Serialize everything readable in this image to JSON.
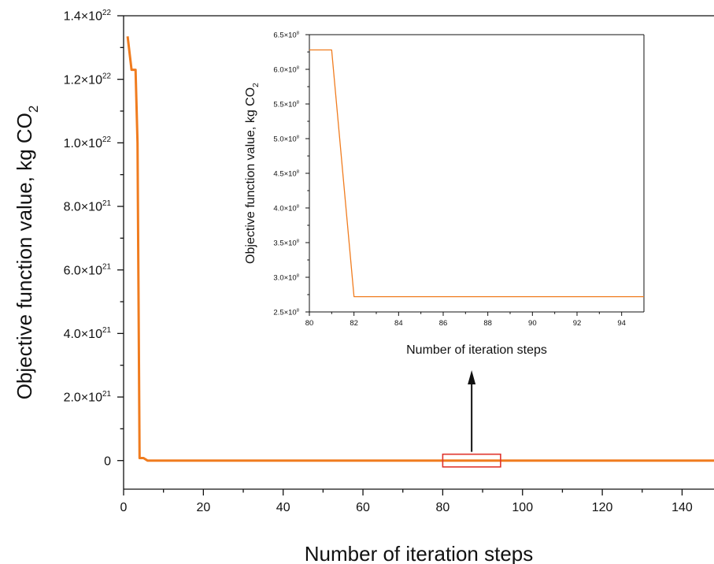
{
  "chart_data": [
    {
      "type": "line",
      "ylabel": "Objective function value, kg CO",
      "ylabel_subscript": "2",
      "xlabel": "Number of iteration steps",
      "xlim": [
        0,
        148
      ],
      "ylim": [
        -9e+20,
        1.4e+22
      ],
      "x_ticks": [
        0,
        20,
        40,
        60,
        80,
        100,
        120,
        140
      ],
      "y_ticks": [
        {
          "value": 1.4e+22,
          "mantissa": "1.4×10",
          "exp": "22"
        },
        {
          "value": 1.2e+22,
          "mantissa": "1.2×10",
          "exp": "22"
        },
        {
          "value": 1e+22,
          "mantissa": "1.0×10",
          "exp": "22"
        },
        {
          "value": 8e+21,
          "mantissa": "8.0×10",
          "exp": "21"
        },
        {
          "value": 6e+21,
          "mantissa": "6.0×10",
          "exp": "21"
        },
        {
          "value": 4e+21,
          "mantissa": "4.0×10",
          "exp": "21"
        },
        {
          "value": 2e+21,
          "mantissa": "2.0×10",
          "exp": "21"
        },
        {
          "value": 0,
          "mantissa": "0",
          "exp": ""
        }
      ],
      "color": "#f07c1f",
      "series": [
        {
          "x": [
            1,
            2,
            3,
            3.5,
            4,
            5,
            6,
            148
          ],
          "y": [
            1.335e+22,
            1.23e+22,
            1.23e+22,
            1e+22,
            8e+19,
            8e+19,
            0,
            0
          ]
        }
      ],
      "zoom_box": {
        "x": [
          80,
          94.5
        ],
        "y": [
          -2e+20,
          2e+20
        ],
        "color": "#e0332b"
      }
    },
    {
      "type": "line",
      "ylabel": "Objective function value, kg CO",
      "ylabel_subscript": "2",
      "xlabel": "Number of iteration steps",
      "xlim": [
        80,
        95
      ],
      "ylim": [
        250000000.0,
        650000000.0
      ],
      "x_ticks": [
        80,
        82,
        84,
        86,
        88,
        90,
        92,
        94
      ],
      "y_ticks": [
        {
          "value": 650000000.0,
          "mantissa": "6.5×10",
          "exp": "8"
        },
        {
          "value": 600000000.0,
          "mantissa": "6.0×10",
          "exp": "8"
        },
        {
          "value": 550000000.0,
          "mantissa": "5.5×10",
          "exp": "8"
        },
        {
          "value": 500000000.0,
          "mantissa": "5.0×10",
          "exp": "8"
        },
        {
          "value": 450000000.0,
          "mantissa": "4.5×10",
          "exp": "8"
        },
        {
          "value": 400000000.0,
          "mantissa": "4.0×10",
          "exp": "8"
        },
        {
          "value": 350000000.0,
          "mantissa": "3.5×10",
          "exp": "8"
        },
        {
          "value": 300000000.0,
          "mantissa": "3.0×10",
          "exp": "8"
        },
        {
          "value": 250000000.0,
          "mantissa": "2.5×10",
          "exp": "8"
        }
      ],
      "color": "#f07c1f",
      "series": [
        {
          "x": [
            80,
            81,
            82,
            95
          ],
          "y": [
            628000000.0,
            628000000.0,
            272000000.0,
            272000000.0
          ]
        }
      ]
    }
  ]
}
